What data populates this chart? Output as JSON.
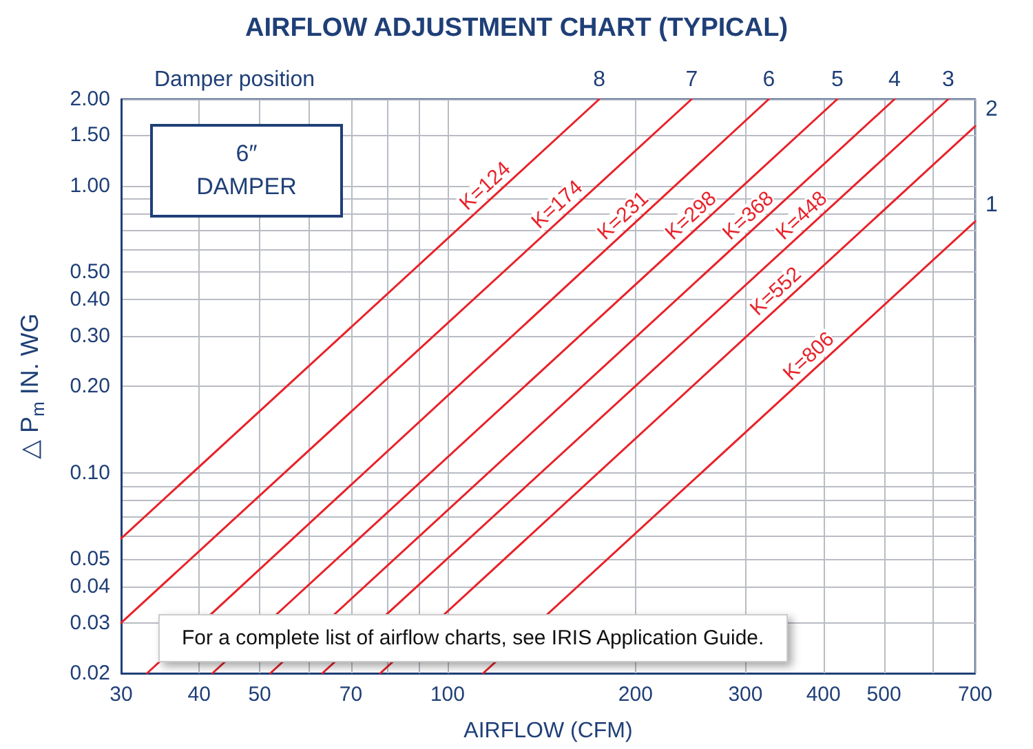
{
  "chart_data": {
    "type": "line",
    "title": "AIRFLOW ADJUSTMENT CHART (TYPICAL)",
    "xlabel": "AIRFLOW (CFM)",
    "ylabel": "△ P$_{m}$ IN. WG",
    "log": "xy",
    "grid": true,
    "legend": false,
    "marker": "none",
    "line_style": "solid",
    "xlim": [
      30,
      700
    ],
    "ylim": [
      0.02,
      2
    ],
    "xticks": [
      30,
      40,
      50,
      {
        "value": 60,
        "label": null
      },
      70,
      {
        "value": 80,
        "label": null
      },
      {
        "value": 90,
        "label": null
      },
      100,
      200,
      300,
      400,
      500,
      {
        "value": 600,
        "label": null
      },
      700
    ],
    "yticks": [
      {
        "value": 0.02,
        "label": "0.02"
      },
      {
        "value": 0.03,
        "label": "0.03"
      },
      {
        "value": 0.04,
        "label": "0.04"
      },
      {
        "value": 0.05,
        "label": "0.05"
      },
      {
        "value": 0.06,
        "label": null
      },
      {
        "value": 0.07,
        "label": null
      },
      {
        "value": 0.08,
        "label": null
      },
      {
        "value": 0.09,
        "label": null
      },
      {
        "value": 0.1,
        "label": "0.10"
      },
      {
        "value": 0.2,
        "label": "0.20"
      },
      {
        "value": 0.3,
        "label": "0.30"
      },
      {
        "value": 0.4,
        "label": "0.40"
      },
      {
        "value": 0.5,
        "label": "0.50"
      },
      {
        "value": 0.6,
        "label": null
      },
      {
        "value": 0.7,
        "label": null
      },
      {
        "value": 0.8,
        "label": null
      },
      {
        "value": 0.9,
        "label": null
      },
      {
        "value": 1,
        "label": "1.00"
      },
      {
        "value": 1.5,
        "label": "1.50"
      },
      {
        "value": 2,
        "label": "2.00"
      }
    ],
    "series": [
      {
        "name": "K=124",
        "color": "#e8222a",
        "x": [
          30,
          175
        ],
        "values": [
          0.059,
          2.0
        ]
      },
      {
        "name": "K=174",
        "color": "#e8222a",
        "x": [
          30,
          246
        ],
        "values": [
          0.03,
          2.0
        ]
      },
      {
        "name": "K=231",
        "color": "#e8222a",
        "x": [
          33,
          327
        ],
        "values": [
          0.02,
          2.0
        ]
      },
      {
        "name": "K=298",
        "color": "#e8222a",
        "x": [
          42,
          421
        ],
        "values": [
          0.02,
          2.0
        ]
      },
      {
        "name": "K=368",
        "color": "#e8222a",
        "x": [
          52,
          520
        ],
        "values": [
          0.02,
          2.0
        ]
      },
      {
        "name": "K=448",
        "color": "#e8222a",
        "x": [
          63,
          634
        ],
        "values": [
          0.02,
          2.0
        ]
      },
      {
        "name": "K=552",
        "color": "#e8222a",
        "x": [
          78,
          700
        ],
        "values": [
          0.02,
          1.61
        ]
      },
      {
        "name": "K=806",
        "color": "#e8222a",
        "x": [
          114,
          700
        ],
        "values": [
          0.02,
          0.75
        ]
      }
    ],
    "annotations": [
      "Damper position",
      {
        "text": "8",
        "x": 175,
        "y": 2
      },
      {
        "text": "7",
        "x": 246,
        "y": 2
      },
      {
        "text": "6",
        "x": 327,
        "y": 2
      },
      {
        "text": "5",
        "x": 421,
        "y": 2
      },
      {
        "text": "4",
        "x": 520,
        "y": 2
      },
      {
        "text": "3",
        "x": 634,
        "y": 2
      },
      {
        "text": "2",
        "x": 700,
        "y": 1.61
      },
      {
        "text": "1",
        "x": 700,
        "y": 0.75
      },
      "6″\nDAMPER",
      "For a complete list of airflow charts, see IRIS Application Guide."
    ]
  }
}
